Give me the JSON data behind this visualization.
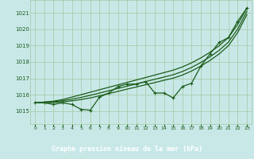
{
  "title": "Graphe pression niveau de la mer (hPa)",
  "bg_color": "#c8e8e8",
  "grid_color": "#aaccaa",
  "line_color": "#1a5c1a",
  "label_bg": "#2d6b2d",
  "label_fg": "#ffffff",
  "xlim": [
    -0.5,
    23.5
  ],
  "ylim": [
    1014.2,
    1021.8
  ],
  "yticks": [
    1015,
    1016,
    1017,
    1018,
    1019,
    1020,
    1021
  ],
  "xtick_labels": [
    "0",
    "1",
    "2",
    "3",
    "4",
    "5",
    "6",
    "7",
    "8",
    "9",
    "10",
    "11",
    "12",
    "13",
    "14",
    "15",
    "16",
    "17",
    "18",
    "19",
    "20",
    "21",
    "22",
    "23"
  ],
  "line_jagged": [
    1015.5,
    1015.5,
    1015.4,
    1015.5,
    1015.4,
    1015.1,
    1015.05,
    1015.85,
    1016.1,
    1016.5,
    1016.65,
    1016.65,
    1016.8,
    1016.1,
    1016.1,
    1015.8,
    1016.5,
    1016.7,
    1017.75,
    1018.5,
    1019.2,
    1019.5,
    1020.5,
    1021.3
  ],
  "line_straight1": [
    1015.5,
    1015.55,
    1015.6,
    1015.7,
    1015.85,
    1016.0,
    1016.15,
    1016.3,
    1016.45,
    1016.6,
    1016.75,
    1016.9,
    1017.05,
    1017.2,
    1017.35,
    1017.5,
    1017.7,
    1017.95,
    1018.25,
    1018.6,
    1019.0,
    1019.5,
    1020.3,
    1021.3
  ],
  "line_straight2": [
    1015.5,
    1015.53,
    1015.57,
    1015.63,
    1015.72,
    1015.83,
    1015.96,
    1016.1,
    1016.24,
    1016.38,
    1016.52,
    1016.66,
    1016.8,
    1016.94,
    1017.08,
    1017.22,
    1017.42,
    1017.67,
    1017.97,
    1018.32,
    1018.72,
    1019.22,
    1020.02,
    1021.1
  ],
  "line_straight3": [
    1015.5,
    1015.5,
    1015.52,
    1015.56,
    1015.62,
    1015.7,
    1015.8,
    1015.93,
    1016.07,
    1016.2,
    1016.34,
    1016.47,
    1016.61,
    1016.74,
    1016.88,
    1017.01,
    1017.2,
    1017.45,
    1017.75,
    1018.1,
    1018.5,
    1019.0,
    1019.8,
    1020.9
  ]
}
